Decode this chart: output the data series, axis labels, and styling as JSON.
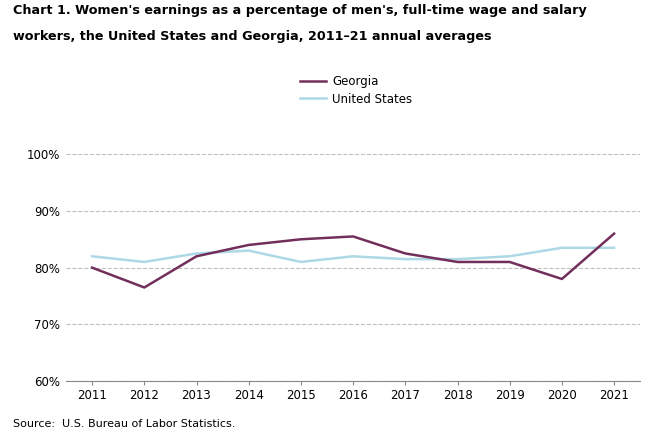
{
  "years": [
    2011,
    2012,
    2013,
    2014,
    2015,
    2016,
    2017,
    2018,
    2019,
    2020,
    2021
  ],
  "georgia": [
    80.0,
    76.5,
    82.0,
    84.0,
    85.0,
    85.5,
    82.5,
    81.0,
    81.0,
    78.0,
    86.0
  ],
  "us": [
    82.0,
    81.0,
    82.5,
    83.0,
    81.0,
    82.0,
    81.5,
    81.5,
    82.0,
    83.5,
    83.5
  ],
  "georgia_color": "#722F5B",
  "us_color": "#ADD8E6",
  "georgia_label": "Georgia",
  "us_label": "United States",
  "title_line1": "Chart 1. Women's earnings as a percentage of men's, full-time wage and salary",
  "title_line2": "workers, the United States and Georgia, 2011–21 annual averages",
  "source": "Source:  U.S. Bureau of Labor Statistics.",
  "ylim": [
    60,
    102
  ],
  "yticks": [
    60,
    70,
    80,
    90,
    100
  ],
  "ytick_labels": [
    "60%",
    "70%",
    "80%",
    "90%",
    "100%"
  ],
  "xlim": [
    2010.5,
    2021.5
  ],
  "xticks": [
    2011,
    2012,
    2013,
    2014,
    2015,
    2016,
    2017,
    2018,
    2019,
    2020,
    2021
  ],
  "line_width": 1.8
}
